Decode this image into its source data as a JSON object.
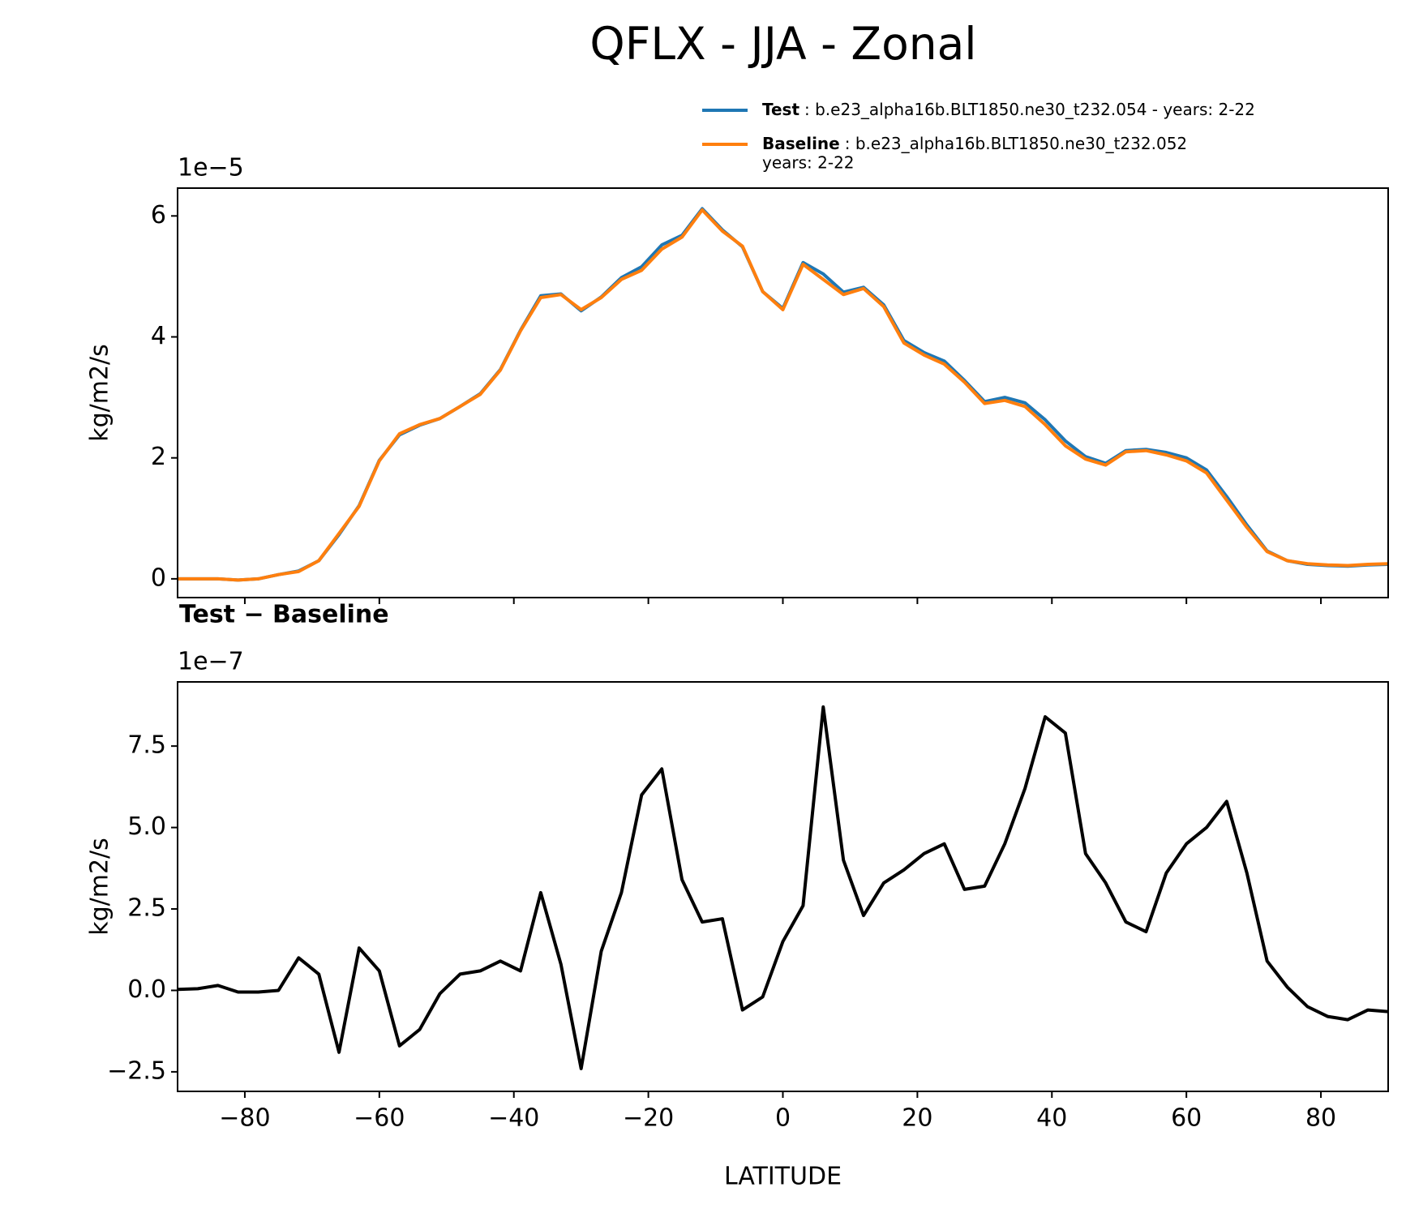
{
  "chart_data": [
    {
      "type": "line",
      "title": "QFLX - JJA - Zonal",
      "offset_label": "1e−5",
      "ylabel": "kg/m2/s",
      "x": [
        -90,
        -87,
        -84,
        -81,
        -78,
        -75,
        -72,
        -69,
        -66,
        -63,
        -60,
        -57,
        -54,
        -51,
        -48,
        -45,
        -42,
        -39,
        -36,
        -33,
        -30,
        -27,
        -24,
        -21,
        -18,
        -15,
        -12,
        -9,
        -6,
        -3,
        0,
        3,
        6,
        9,
        12,
        15,
        18,
        21,
        24,
        27,
        30,
        33,
        36,
        39,
        42,
        45,
        48,
        51,
        54,
        57,
        60,
        63,
        66,
        69,
        72,
        75,
        78,
        81,
        84,
        87,
        90
      ],
      "series": [
        {
          "name": "Test",
          "legend_text": [
            ": b.e23_alpha16b.BLT1850.ne30_t232.054 - years: 2-22"
          ],
          "color": "#1f77b4",
          "values": [
            0,
            0,
            0,
            -0.02,
            0,
            0.07,
            0.13,
            0.3,
            0.73,
            1.21,
            1.96,
            2.38,
            2.54,
            2.65,
            2.85,
            3.06,
            3.46,
            4.11,
            4.68,
            4.71,
            4.43,
            4.66,
            4.98,
            5.16,
            5.52,
            5.68,
            6.12,
            5.77,
            5.49,
            4.75,
            4.47,
            5.23,
            5.04,
            4.74,
            4.82,
            4.53,
            3.94,
            3.74,
            3.6,
            3.28,
            2.93,
            3.0,
            2.91,
            2.63,
            2.28,
            2.02,
            1.91,
            2.12,
            2.14,
            2.09,
            2.0,
            1.8,
            1.36,
            0.89,
            0.46,
            0.3,
            0.24,
            0.22,
            0.21,
            0.23,
            0.24
          ]
        },
        {
          "name": "Baseline",
          "legend_text": [
            ": b.e23_alpha16b.BLT1850.ne30_t232.052",
            "years: 2-22"
          ],
          "color": "#ff7f0e",
          "values": [
            0,
            0,
            0,
            -0.02,
            0,
            0.07,
            0.12,
            0.3,
            0.75,
            1.2,
            1.95,
            2.4,
            2.55,
            2.65,
            2.85,
            3.05,
            3.45,
            4.1,
            4.65,
            4.7,
            4.45,
            4.65,
            4.95,
            5.1,
            5.45,
            5.65,
            6.1,
            5.75,
            5.5,
            4.75,
            4.45,
            5.2,
            4.95,
            4.7,
            4.8,
            4.5,
            3.9,
            3.7,
            3.55,
            3.25,
            2.9,
            2.95,
            2.85,
            2.55,
            2.2,
            1.98,
            1.88,
            2.1,
            2.12,
            2.05,
            1.95,
            1.75,
            1.3,
            0.85,
            0.45,
            0.3,
            0.25,
            0.23,
            0.22,
            0.24,
            0.25
          ]
        }
      ],
      "xlim": [
        -90,
        90
      ],
      "xticks": [
        -80,
        -60,
        -40,
        -20,
        0,
        20,
        40,
        60,
        80
      ],
      "ylim": [
        -0.31,
        6.46
      ],
      "yticks": [
        0,
        2,
        4,
        6
      ]
    },
    {
      "type": "line",
      "title": "Test − Baseline",
      "offset_label": "1e−7",
      "ylabel": "kg/m2/s",
      "xlabel": "LATITUDE",
      "x": [
        -90,
        -87,
        -84,
        -81,
        -78,
        -75,
        -72,
        -69,
        -66,
        -63,
        -60,
        -57,
        -54,
        -51,
        -48,
        -45,
        -42,
        -39,
        -36,
        -33,
        -30,
        -27,
        -24,
        -21,
        -18,
        -15,
        -12,
        -9,
        -6,
        -3,
        0,
        3,
        6,
        9,
        12,
        15,
        18,
        21,
        24,
        27,
        30,
        33,
        36,
        39,
        42,
        45,
        48,
        51,
        54,
        57,
        60,
        63,
        66,
        69,
        72,
        75,
        78,
        81,
        84,
        87,
        90
      ],
      "series": [
        {
          "color": "#000000",
          "values": [
            0.03,
            0.05,
            0.15,
            -0.05,
            -0.05,
            0,
            1.0,
            0.5,
            -1.9,
            1.3,
            0.6,
            -1.7,
            -1.2,
            -0.1,
            0.5,
            0.6,
            0.9,
            0.6,
            3.0,
            0.8,
            -2.4,
            1.2,
            3.0,
            6.0,
            6.8,
            3.4,
            2.1,
            2.2,
            -0.6,
            -0.2,
            1.5,
            2.6,
            8.7,
            4.0,
            2.3,
            3.3,
            3.7,
            4.2,
            4.5,
            3.1,
            3.2,
            4.5,
            6.2,
            8.4,
            7.9,
            4.2,
            3.3,
            2.1,
            1.8,
            3.6,
            4.5,
            5.0,
            5.8,
            3.6,
            0.9,
            0.1,
            -0.5,
            -0.8,
            -0.9,
            -0.6,
            -0.65
          ]
        }
      ],
      "xlim": [
        -90,
        90
      ],
      "xticks": [
        {
          "value": -80,
          "label": "−80"
        },
        {
          "value": -60,
          "label": "−60"
        },
        {
          "value": -40,
          "label": "−40"
        },
        {
          "value": -20,
          "label": "−20"
        },
        0,
        20,
        40,
        60,
        80
      ],
      "ylim": [
        -3.1,
        9.47
      ],
      "yticks": [
        {
          "value": -2.5,
          "label": "−2.5"
        },
        {
          "value": 0,
          "label": "0.0"
        },
        2.5,
        {
          "value": 5,
          "label": "5.0"
        },
        7.5
      ]
    }
  ]
}
